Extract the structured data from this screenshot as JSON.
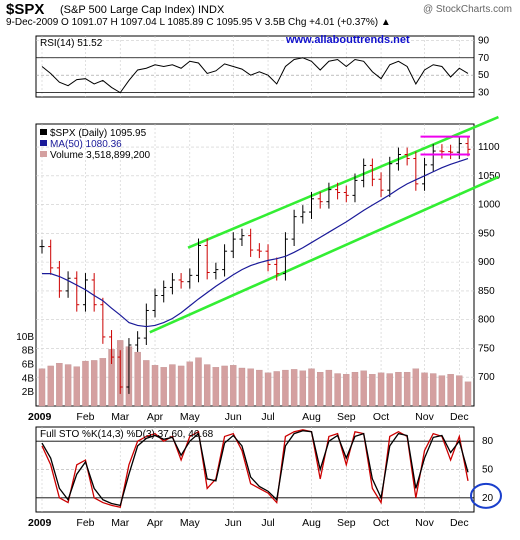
{
  "header": {
    "symbol": "$SPX",
    "name": "(S&P 500 Large Cap Index) INDX",
    "watermark": "@ StockCharts.com",
    "quote": "9-Dec-2009    O 1091.07  H 1097.04  L 1085.89  C 1095.95  V 3.5B  Chg +4.01 (+0.37%) ▲",
    "site": "www.allabouttrends.net"
  },
  "chart_data": [
    {
      "type": "line",
      "panel": "RSI",
      "label": "RSI(14) 51.52",
      "ylim": [
        25,
        95
      ],
      "yticks": [
        30,
        50,
        70,
        90
      ],
      "reference_lines": [
        30,
        70
      ],
      "x": [
        "Jan-02",
        "Jan-09",
        "Jan-16",
        "Jan-23",
        "Jan-30",
        "Feb-06",
        "Feb-13",
        "Feb-20",
        "Feb-27",
        "Mar-06",
        "Mar-13",
        "Mar-20",
        "Mar-27",
        "Apr-03",
        "Apr-10",
        "Apr-17",
        "Apr-24",
        "May-01",
        "May-08",
        "May-15",
        "May-22",
        "May-29",
        "Jun-05",
        "Jun-12",
        "Jun-19",
        "Jun-26",
        "Jul-03",
        "Jul-10",
        "Jul-17",
        "Jul-24",
        "Jul-31",
        "Aug-07",
        "Aug-14",
        "Aug-21",
        "Aug-28",
        "Sep-04",
        "Sep-11",
        "Sep-18",
        "Sep-25",
        "Oct-02",
        "Oct-09",
        "Oct-16",
        "Oct-23",
        "Oct-30",
        "Nov-06",
        "Nov-13",
        "Nov-20",
        "Nov-27",
        "Dec-04",
        "Dec-09"
      ],
      "values": [
        60,
        52,
        42,
        38,
        45,
        46,
        40,
        44,
        36,
        30,
        44,
        56,
        58,
        62,
        60,
        62,
        58,
        66,
        64,
        52,
        55,
        63,
        60,
        57,
        50,
        54,
        50,
        40,
        60,
        68,
        70,
        66,
        56,
        66,
        68,
        60,
        68,
        66,
        54,
        46,
        62,
        66,
        60,
        40,
        56,
        62,
        60,
        48,
        58,
        52
      ]
    },
    {
      "type": "candlestick",
      "panel": "price",
      "legend": [
        {
          "label": "$SPX (Daily) 1095.95",
          "color": "#000000"
        },
        {
          "label": "MA(50) 1080.36",
          "color": "#1a1a99"
        },
        {
          "label": "Volume 3,518,899,200",
          "color": "#d4a0a0"
        }
      ],
      "ylim": [
        650,
        1140
      ],
      "yticks": [
        700,
        750,
        800,
        850,
        900,
        950,
        1000,
        1050,
        1100
      ],
      "volume_ticks": [
        "2B",
        "4B",
        "6B",
        "8B",
        "10B"
      ],
      "volume_ylim": [
        0,
        11
      ],
      "x": [
        "Jan-02",
        "Jan-09",
        "Jan-16",
        "Jan-23",
        "Jan-30",
        "Feb-06",
        "Feb-13",
        "Feb-20",
        "Feb-27",
        "Mar-06",
        "Mar-13",
        "Mar-20",
        "Mar-27",
        "Apr-03",
        "Apr-10",
        "Apr-17",
        "Apr-24",
        "May-01",
        "May-08",
        "May-15",
        "May-22",
        "May-29",
        "Jun-05",
        "Jun-12",
        "Jun-19",
        "Jun-26",
        "Jul-03",
        "Jul-10",
        "Jul-17",
        "Jul-24",
        "Jul-31",
        "Aug-07",
        "Aug-14",
        "Aug-21",
        "Aug-28",
        "Sep-04",
        "Sep-11",
        "Sep-18",
        "Sep-25",
        "Oct-02",
        "Oct-09",
        "Oct-16",
        "Oct-23",
        "Oct-30",
        "Nov-06",
        "Nov-13",
        "Nov-20",
        "Nov-27",
        "Dec-04",
        "Dec-09"
      ],
      "close": [
        927,
        890,
        850,
        872,
        826,
        869,
        826,
        770,
        735,
        683,
        756,
        768,
        816,
        842,
        856,
        869,
        866,
        877,
        929,
        882,
        887,
        919,
        940,
        946,
        921,
        919,
        896,
        880,
        940,
        979,
        987,
        1010,
        1005,
        1026,
        1021,
        1016,
        1042,
        1068,
        1044,
        1025,
        1071,
        1087,
        1080,
        1036,
        1069,
        1093,
        1092,
        1091,
        1106,
        1096
      ],
      "ma50": [
        880,
        880,
        875,
        868,
        860,
        852,
        842,
        833,
        820,
        808,
        795,
        790,
        788,
        790,
        795,
        802,
        812,
        824,
        836,
        847,
        858,
        868,
        878,
        887,
        894,
        899,
        903,
        906,
        910,
        917,
        925,
        934,
        943,
        952,
        961,
        970,
        980,
        990,
        999,
        1008,
        1017,
        1027,
        1036,
        1043,
        1050,
        1057,
        1064,
        1070,
        1075,
        1080
      ],
      "volume_b": [
        5.4,
        5.8,
        6.2,
        6.0,
        5.7,
        6.5,
        6.6,
        6.9,
        8.2,
        9.5,
        8.6,
        7.8,
        6.6,
        5.9,
        5.6,
        6.0,
        5.8,
        6.4,
        7.0,
        6.0,
        5.6,
        5.8,
        5.9,
        5.5,
        5.4,
        5.2,
        4.8,
        5.0,
        5.2,
        5.3,
        5.1,
        5.4,
        4.9,
        5.2,
        4.7,
        4.6,
        4.9,
        5.1,
        4.6,
        4.8,
        4.7,
        4.9,
        4.9,
        5.4,
        4.8,
        4.7,
        4.4,
        4.6,
        4.4,
        3.5
      ],
      "trend_channel": {
        "upper": {
          "from": [
            "Apr-30",
            925
          ],
          "to": [
            "Dec-31",
            1152
          ]
        },
        "lower": {
          "from": [
            "Mar-31",
            778
          ],
          "to": [
            "Dec-31",
            1048
          ]
        }
      },
      "range_box": {
        "top": 1118,
        "bottom": 1087,
        "from": "Nov-06",
        "to": "Dec-09"
      }
    },
    {
      "type": "line",
      "panel": "stochastic",
      "label": "Full STO %K(14,3) %D(3) 37.60, 46.68",
      "ylim": [
        5,
        95
      ],
      "yticks": [
        20,
        50,
        80
      ],
      "reference_lines": [
        20,
        80
      ],
      "x": [
        "Jan-02",
        "Jan-09",
        "Jan-16",
        "Jan-23",
        "Jan-30",
        "Feb-06",
        "Feb-13",
        "Feb-20",
        "Feb-27",
        "Mar-06",
        "Mar-13",
        "Mar-20",
        "Mar-27",
        "Apr-03",
        "Apr-10",
        "Apr-17",
        "Apr-24",
        "May-01",
        "May-08",
        "May-15",
        "May-22",
        "May-29",
        "Jun-05",
        "Jun-12",
        "Jun-19",
        "Jun-26",
        "Jul-03",
        "Jul-10",
        "Jul-17",
        "Jul-24",
        "Jul-31",
        "Aug-07",
        "Aug-14",
        "Aug-21",
        "Aug-28",
        "Sep-04",
        "Sep-11",
        "Sep-18",
        "Sep-25",
        "Oct-02",
        "Oct-09",
        "Oct-16",
        "Oct-23",
        "Oct-30",
        "Nov-06",
        "Nov-13",
        "Nov-20",
        "Nov-27",
        "Dec-04",
        "Dec-09"
      ],
      "series": [
        {
          "name": "%K",
          "color": "#cc0000",
          "values": [
            75,
            55,
            20,
            15,
            55,
            60,
            20,
            15,
            12,
            10,
            55,
            80,
            85,
            88,
            80,
            85,
            60,
            85,
            90,
            30,
            40,
            85,
            88,
            70,
            35,
            30,
            25,
            15,
            85,
            90,
            92,
            90,
            40,
            85,
            88,
            55,
            90,
            88,
            30,
            15,
            85,
            90,
            85,
            20,
            70,
            88,
            85,
            60,
            85,
            38
          ]
        },
        {
          "name": "%D",
          "color": "#000000",
          "values": [
            78,
            62,
            30,
            18,
            45,
            58,
            30,
            18,
            14,
            12,
            45,
            75,
            83,
            86,
            82,
            84,
            65,
            80,
            88,
            40,
            38,
            78,
            86,
            75,
            42,
            32,
            27,
            18,
            75,
            88,
            91,
            90,
            50,
            80,
            86,
            62,
            85,
            88,
            40,
            20,
            75,
            88,
            86,
            30,
            62,
            84,
            86,
            68,
            80,
            47
          ]
        }
      ],
      "circled_level": 20
    }
  ],
  "x_axis": {
    "labels": [
      "2009",
      "Feb",
      "Mar",
      "Apr",
      "May",
      "Jun",
      "Jul",
      "Aug",
      "Sep",
      "Oct",
      "Nov",
      "Dec"
    ],
    "label_dates": [
      "Jan-02",
      "Feb-06",
      "Mar-06",
      "Apr-03",
      "May-01",
      "Jun-05",
      "Jul-03",
      "Aug-07",
      "Sep-04",
      "Oct-02",
      "Nov-06",
      "Dec-04"
    ]
  },
  "colors": {
    "price": "#000000",
    "down_bar": "#cc0000",
    "ma": "#1a1a99",
    "volume": "#d4a0a0",
    "trend_channel": "#33ee33",
    "range_box": "#ee00ee",
    "circle": "#1a3fcc",
    "grid": "#cccccc"
  }
}
